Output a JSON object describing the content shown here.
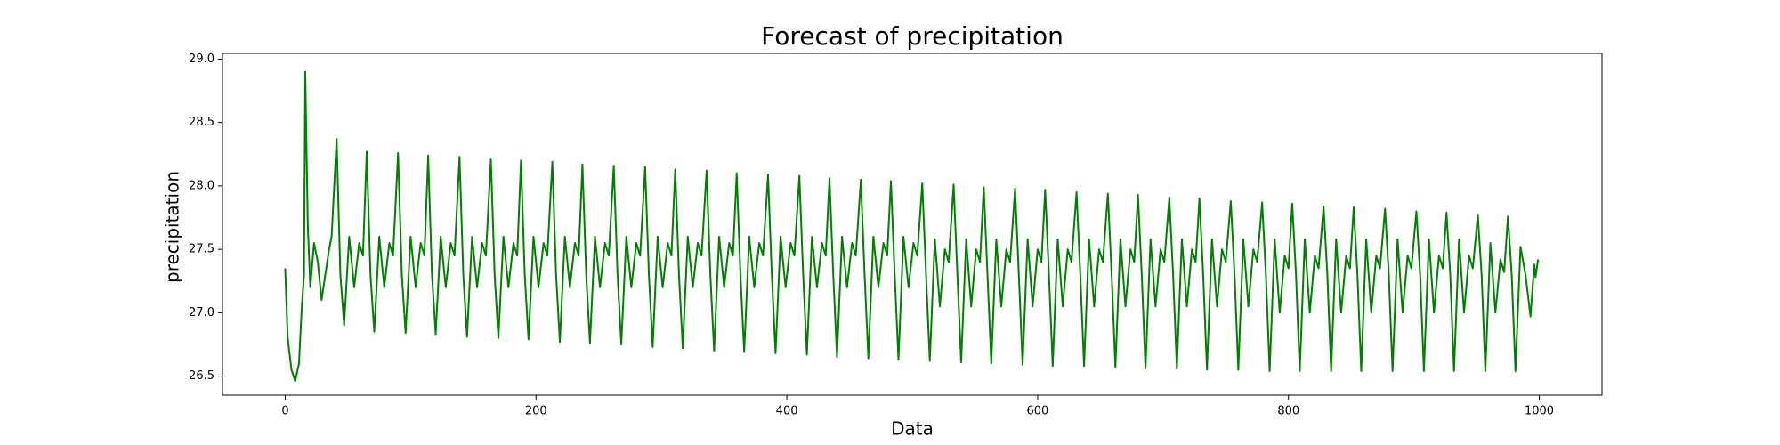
{
  "chart_data": {
    "type": "line",
    "title": "Forecast of precipitation",
    "x_label": "Data",
    "y_label": "precipitation",
    "xlim": [
      -50,
      1050
    ],
    "ylim": [
      26.35,
      29.045
    ],
    "xticks": [
      0,
      200,
      400,
      600,
      800,
      1000
    ],
    "yticks": [
      26.5,
      {
        "value": 27,
        "label": "27.0"
      },
      27.5,
      {
        "value": 28,
        "label": "28.0"
      },
      28.5,
      {
        "value": 29,
        "label": "29.0"
      }
    ],
    "grid": false,
    "x": [
      0,
      2,
      5,
      8,
      11,
      13,
      15,
      16,
      18,
      20,
      23,
      26,
      29,
      32,
      35,
      37,
      41,
      44,
      47,
      51,
      55,
      59,
      62,
      65,
      68,
      71,
      75,
      79,
      83,
      86,
      90,
      93,
      96,
      100,
      104,
      108,
      111,
      114,
      117,
      120,
      124,
      128,
      132,
      135,
      139,
      142,
      145,
      149,
      153,
      157,
      160,
      164,
      167,
      170,
      174,
      178,
      182,
      185,
      188,
      191,
      194,
      198,
      202,
      206,
      209,
      213,
      216,
      219,
      223,
      227,
      231,
      234,
      237,
      240,
      243,
      247,
      251,
      255,
      258,
      262,
      265,
      268,
      272,
      276,
      280,
      283,
      287,
      290,
      293,
      297,
      301,
      305,
      308,
      311,
      314,
      317,
      321,
      325,
      329,
      332,
      336,
      339,
      342,
      346,
      350,
      354,
      357,
      360,
      363,
      366,
      370,
      374,
      378,
      381,
      385,
      388,
      391,
      395,
      399,
      403,
      406,
      410,
      413,
      416,
      420,
      424,
      428,
      431,
      434,
      437,
      440,
      444,
      448,
      452,
      455,
      459,
      462,
      465,
      469,
      473,
      477,
      480,
      483,
      486,
      489,
      493,
      497,
      501,
      504,
      508,
      511,
      514,
      518,
      522,
      526,
      529,
      533,
      536,
      539,
      543,
      547,
      551,
      554,
      557,
      560,
      563,
      567,
      571,
      575,
      578,
      582,
      585,
      588,
      592,
      596,
      600,
      603,
      606,
      609,
      612,
      616,
      620,
      624,
      627,
      631,
      634,
      637,
      641,
      645,
      649,
      652,
      656,
      659,
      662,
      666,
      670,
      674,
      677,
      680,
      683,
      686,
      690,
      694,
      698,
      701,
      705,
      708,
      711,
      715,
      719,
      723,
      726,
      729,
      732,
      735,
      739,
      743,
      747,
      750,
      754,
      757,
      760,
      764,
      768,
      772,
      775,
      779,
      782,
      785,
      789,
      793,
      797,
      800,
      803,
      806,
      809,
      813,
      817,
      821,
      824,
      828,
      831,
      834,
      838,
      842,
      846,
      849,
      852,
      855,
      858,
      862,
      866,
      870,
      873,
      877,
      880,
      883,
      887,
      891,
      895,
      898,
      902,
      905,
      908,
      912,
      916,
      920,
      923,
      926,
      929,
      932,
      936,
      940,
      944,
      947,
      951,
      954,
      957,
      961,
      965,
      969,
      972,
      975,
      978,
      981,
      985,
      989,
      993,
      996,
      997,
      999
    ],
    "series": [
      {
        "color": "#008000",
        "values": [
          27.35,
          26.8,
          26.55,
          26.46,
          26.6,
          27.0,
          27.3,
          28.9,
          27.7,
          27.2,
          27.55,
          27.4,
          27.1,
          27.3,
          27.5,
          27.6,
          28.37,
          27.3,
          26.9,
          27.6,
          27.2,
          27.55,
          27.45,
          28.27,
          27.3,
          26.85,
          27.6,
          27.2,
          27.55,
          27.45,
          28.26,
          27.3,
          26.84,
          27.6,
          27.2,
          27.55,
          27.45,
          28.24,
          27.3,
          26.83,
          27.6,
          27.2,
          27.55,
          27.45,
          28.23,
          27.3,
          26.81,
          27.6,
          27.2,
          27.55,
          27.45,
          28.21,
          27.3,
          26.8,
          27.6,
          27.2,
          27.55,
          27.45,
          28.2,
          27.3,
          26.79,
          27.6,
          27.2,
          27.55,
          27.45,
          28.19,
          27.3,
          26.77,
          27.6,
          27.2,
          27.55,
          27.45,
          28.17,
          27.3,
          26.76,
          27.6,
          27.2,
          27.55,
          27.45,
          28.16,
          27.3,
          26.75,
          27.6,
          27.2,
          27.55,
          27.45,
          28.15,
          27.3,
          26.73,
          27.6,
          27.2,
          27.55,
          27.45,
          28.13,
          27.3,
          26.72,
          27.6,
          27.2,
          27.55,
          27.45,
          28.12,
          27.3,
          26.7,
          27.6,
          27.2,
          27.55,
          27.45,
          28.1,
          27.3,
          26.69,
          27.6,
          27.2,
          27.55,
          27.45,
          28.09,
          27.3,
          26.68,
          27.6,
          27.2,
          27.55,
          27.45,
          28.08,
          27.3,
          26.67,
          27.6,
          27.2,
          27.55,
          27.45,
          28.06,
          27.3,
          26.65,
          27.6,
          27.2,
          27.55,
          27.45,
          28.05,
          27.3,
          26.64,
          27.6,
          27.2,
          27.55,
          27.45,
          28.04,
          27.3,
          26.63,
          27.6,
          27.2,
          27.55,
          27.45,
          28.02,
          27.3,
          26.62,
          27.58,
          27.05,
          27.5,
          27.4,
          28.01,
          27.3,
          26.61,
          27.58,
          27.05,
          27.5,
          27.4,
          27.99,
          27.3,
          26.6,
          27.58,
          27.05,
          27.5,
          27.4,
          27.98,
          27.3,
          26.59,
          27.58,
          27.05,
          27.5,
          27.4,
          27.97,
          27.3,
          26.58,
          27.58,
          27.05,
          27.5,
          27.4,
          27.95,
          27.3,
          26.58,
          27.58,
          27.05,
          27.5,
          27.4,
          27.94,
          27.3,
          26.57,
          27.58,
          27.05,
          27.5,
          27.4,
          27.93,
          27.3,
          26.56,
          27.58,
          27.05,
          27.5,
          27.4,
          27.91,
          27.3,
          26.56,
          27.58,
          27.05,
          27.5,
          27.4,
          27.9,
          27.3,
          26.55,
          27.58,
          27.05,
          27.5,
          27.4,
          27.88,
          27.3,
          26.55,
          27.58,
          27.05,
          27.5,
          27.4,
          27.87,
          27.3,
          26.54,
          27.58,
          27.0,
          27.45,
          27.35,
          27.86,
          27.3,
          26.54,
          27.58,
          27.0,
          27.45,
          27.35,
          27.84,
          27.3,
          26.54,
          27.58,
          27.0,
          27.45,
          27.35,
          27.83,
          27.3,
          26.54,
          27.58,
          27.0,
          27.45,
          27.35,
          27.82,
          27.3,
          26.54,
          27.58,
          27.0,
          27.45,
          27.35,
          27.8,
          27.3,
          26.54,
          27.58,
          27.0,
          27.45,
          27.35,
          27.79,
          27.3,
          26.54,
          27.58,
          27.0,
          27.45,
          27.35,
          27.77,
          27.3,
          26.54,
          27.55,
          27.0,
          27.42,
          27.32,
          27.76,
          27.3,
          26.54,
          27.52,
          27.3,
          26.97,
          27.38,
          27.28,
          27.42
        ]
      }
    ]
  }
}
